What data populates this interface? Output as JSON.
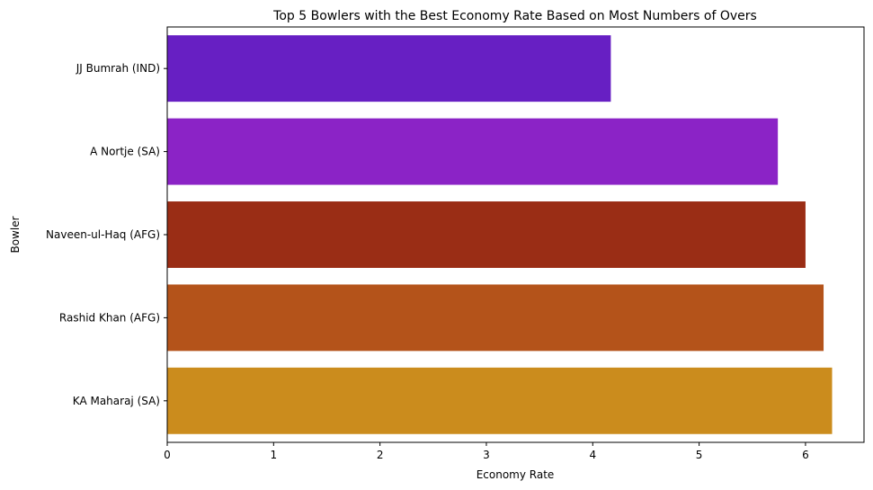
{
  "chart_data": {
    "type": "bar",
    "orientation": "horizontal",
    "title": "Top 5 Bowlers with the Best Economy Rate Based on Most Numbers of Overs",
    "xlabel": "Economy Rate",
    "ylabel": "Bowler",
    "xlim": [
      0,
      6.55
    ],
    "xticks": [
      0,
      1,
      2,
      3,
      4,
      5,
      6
    ],
    "grid": false,
    "categories": [
      "JJ Bumrah (IND)",
      "A Nortje (SA)",
      "Naveen-ul-Haq (AFG)",
      "Rashid Khan (AFG)",
      "KA Maharaj (SA)"
    ],
    "values": [
      4.17,
      5.74,
      6.0,
      6.17,
      6.25
    ],
    "colors": [
      "#671fc3",
      "#8b23c6",
      "#9a2d15",
      "#b4531a",
      "#cb8c1d"
    ]
  }
}
